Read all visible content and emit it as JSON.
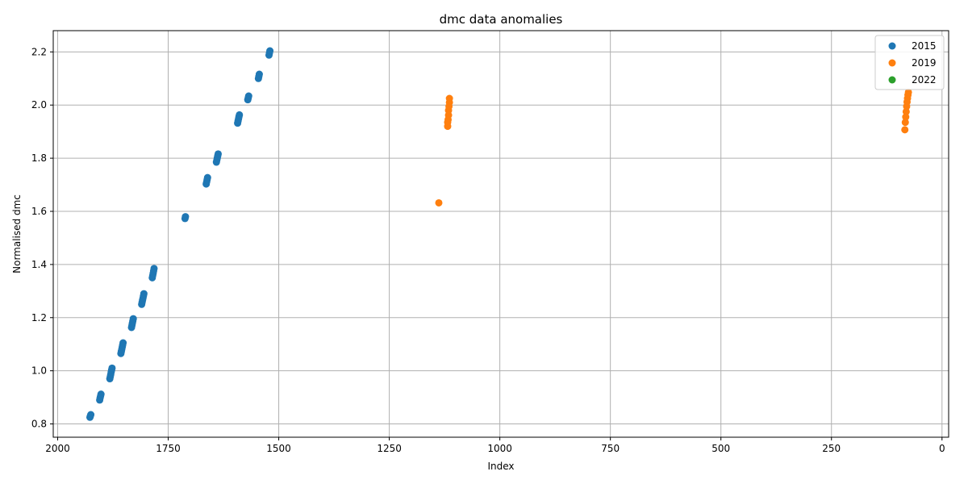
{
  "chart_data": {
    "type": "scatter",
    "title": "dmc data anomalies",
    "xlabel": "Index",
    "ylabel": "Normalised dmc",
    "xlim": [
      2010,
      -15
    ],
    "ylim": [
      0.75,
      2.28
    ],
    "x_inverted": true,
    "grid": true,
    "legend_position": "top-right",
    "xticks": [
      2000,
      1750,
      1500,
      1250,
      1000,
      750,
      500,
      250,
      0
    ],
    "yticks": [
      0.8,
      1.0,
      1.2,
      1.4,
      1.6,
      1.8,
      2.0,
      2.2
    ],
    "series": [
      {
        "name": "2015",
        "color": "#1f77b4",
        "points": [
          [
            1927,
            0.825
          ],
          [
            1926,
            0.83
          ],
          [
            1925,
            0.835
          ],
          [
            1905,
            0.89
          ],
          [
            1904,
            0.898
          ],
          [
            1903,
            0.905
          ],
          [
            1902,
            0.912
          ],
          [
            1882,
            0.97
          ],
          [
            1881,
            0.978
          ],
          [
            1880,
            0.986
          ],
          [
            1879,
            0.995
          ],
          [
            1878,
            1.003
          ],
          [
            1877,
            1.01
          ],
          [
            1857,
            1.065
          ],
          [
            1856,
            1.073
          ],
          [
            1855,
            1.081
          ],
          [
            1854,
            1.089
          ],
          [
            1853,
            1.097
          ],
          [
            1852,
            1.105
          ],
          [
            1833,
            1.163
          ],
          [
            1832,
            1.171
          ],
          [
            1831,
            1.179
          ],
          [
            1830,
            1.187
          ],
          [
            1829,
            1.196
          ],
          [
            1810,
            1.25
          ],
          [
            1809,
            1.258
          ],
          [
            1808,
            1.266
          ],
          [
            1807,
            1.274
          ],
          [
            1806,
            1.282
          ],
          [
            1805,
            1.29
          ],
          [
            1786,
            1.35
          ],
          [
            1785,
            1.359
          ],
          [
            1784,
            1.367
          ],
          [
            1783,
            1.376
          ],
          [
            1782,
            1.385
          ],
          [
            1712,
            1.573
          ],
          [
            1711,
            1.58
          ],
          [
            1664,
            1.703
          ],
          [
            1663,
            1.711
          ],
          [
            1662,
            1.719
          ],
          [
            1661,
            1.727
          ],
          [
            1641,
            1.785
          ],
          [
            1640,
            1.793
          ],
          [
            1639,
            1.801
          ],
          [
            1638,
            1.809
          ],
          [
            1637,
            1.816
          ],
          [
            1593,
            1.932
          ],
          [
            1592,
            1.94
          ],
          [
            1591,
            1.948
          ],
          [
            1590,
            1.956
          ],
          [
            1589,
            1.963
          ],
          [
            1570,
            2.02
          ],
          [
            1569,
            2.027
          ],
          [
            1568,
            2.034
          ],
          [
            1546,
            2.1
          ],
          [
            1545,
            2.108
          ],
          [
            1544,
            2.116
          ],
          [
            1522,
            2.188
          ],
          [
            1521,
            2.196
          ],
          [
            1520,
            2.204
          ]
        ]
      },
      {
        "name": "2019",
        "color": "#ff7f0e",
        "points": [
          [
            1138,
            1.632
          ],
          [
            1118,
            1.92
          ],
          [
            1118,
            1.935
          ],
          [
            1117,
            1.945
          ],
          [
            1116,
            1.962
          ],
          [
            1116,
            1.98
          ],
          [
            1115,
            1.995
          ],
          [
            1114,
            2.01
          ],
          [
            1114,
            2.025
          ],
          [
            84,
            1.907
          ],
          [
            83,
            1.935
          ],
          [
            82,
            1.955
          ],
          [
            81,
            1.975
          ],
          [
            80,
            1.995
          ],
          [
            79,
            2.012
          ],
          [
            78,
            2.025
          ],
          [
            77,
            2.038
          ],
          [
            76,
            2.048
          ]
        ]
      },
      {
        "name": "2022",
        "color": "#2ca02c",
        "points": []
      }
    ]
  }
}
